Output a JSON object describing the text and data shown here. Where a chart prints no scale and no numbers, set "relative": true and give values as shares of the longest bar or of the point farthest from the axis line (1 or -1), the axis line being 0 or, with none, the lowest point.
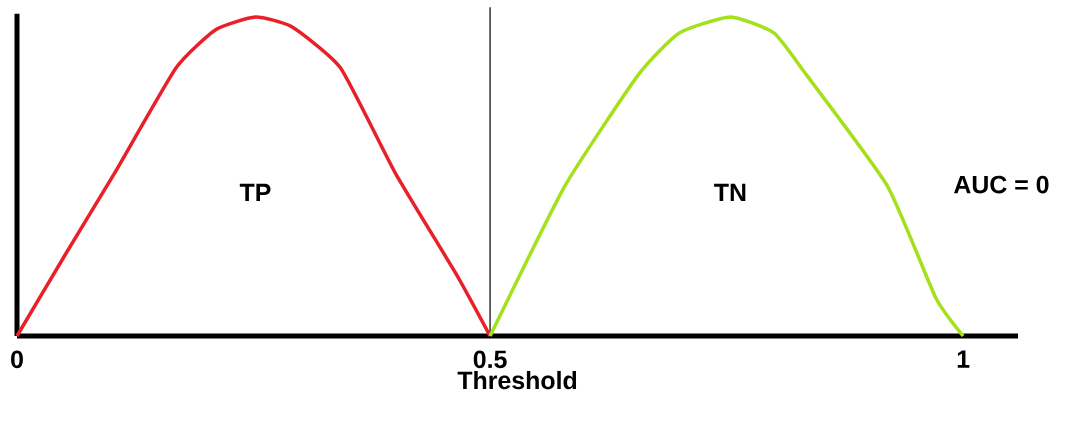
{
  "chart_data": {
    "type": "line",
    "relative": true,
    "xlabel": "Threshold",
    "xlim": [
      0,
      1.058
    ],
    "xticks": [
      0,
      0.5,
      1
    ],
    "marker": "none",
    "line_style": "solid",
    "series": [
      {
        "color": "#e8202a",
        "x": [
          0,
          0.05,
          0.103,
          0.168,
          0.21,
          0.252,
          0.29,
          0.342,
          0.4,
          0.465,
          0.5
        ],
        "values": [
          0,
          0.25,
          0.51,
          0.84,
          0.96,
          1,
          0.97,
          0.84,
          0.51,
          0.19,
          0
        ]
      },
      {
        "color": "#a4e01c",
        "x": [
          0.5,
          0.579,
          0.657,
          0.7,
          0.754,
          0.8,
          0.834,
          0.92,
          0.971,
          1
        ],
        "values": [
          0,
          0.47,
          0.82,
          0.95,
          1,
          0.95,
          0.82,
          0.47,
          0.12,
          0
        ]
      }
    ],
    "ref_lines": [
      {
        "axis": "x",
        "value": 0.5,
        "color": "#000000"
      }
    ],
    "annotations": [
      "TP",
      "TN",
      "AUC = 0"
    ]
  }
}
